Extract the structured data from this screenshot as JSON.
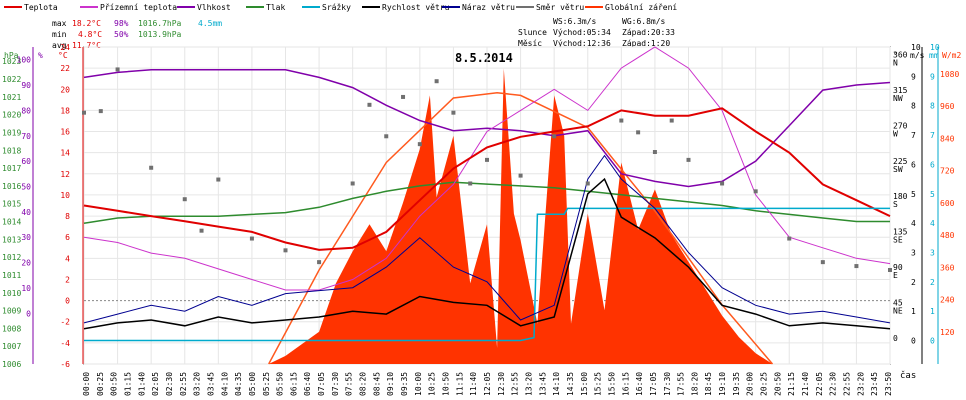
{
  "chart_data": {
    "type": "line",
    "title": "8.5.2014",
    "legend": [
      {
        "label": "Teplota",
        "color": "#e00000"
      },
      {
        "label": "Přízemní teplota",
        "color": "#cc33cc"
      },
      {
        "label": "Vlhkost",
        "color": "#8000aa"
      },
      {
        "label": "Tlak",
        "color": "#2e8b2e"
      },
      {
        "label": "Srážky",
        "color": "#00aacc"
      },
      {
        "label": "Rychlost větru",
        "color": "#000000"
      },
      {
        "label": "Náraz větru",
        "color": "#000090"
      },
      {
        "label": "Směr větru",
        "color": "#707070"
      },
      {
        "label": "Globální záření",
        "color": "#ff3300"
      }
    ],
    "stats": {
      "max_label": "max",
      "max_temp": "18.2°C",
      "max_hum": "98%",
      "max_press": "1016.7hPa",
      "max_rain": "4.5mm",
      "min_label": "min",
      "min_temp": "4.8°C",
      "min_hum": "50%",
      "min_press": "1013.9hPa",
      "avg_label": "avg",
      "avg_temp": "11.7°C"
    },
    "sun_info": {
      "ws": "WS:6.3m/s",
      "wg": "WG:6.8m/s",
      "sun_label": "Slunce",
      "sun_rise": "Východ:05:34",
      "sun_set": "Západ:20:33",
      "moon_label": "Měsíc",
      "moon_rise": "Východ:12:36",
      "moon_set": "Západ:1:20"
    },
    "axis_headers": {
      "hpa": "hPa",
      "percent": "%",
      "celsius": "°C",
      "degree": "°",
      "ms": "m/s",
      "mm": "mm",
      "wm2": "W/m2"
    },
    "pressure_ticks": [
      "1023",
      "1022",
      "1021",
      "1020",
      "1019",
      "1018",
      "1017",
      "1016",
      "1015",
      "1014",
      "1013",
      "1012",
      "1011",
      "1010",
      "1009",
      "1008",
      "1007",
      "1006"
    ],
    "humidity_ticks": [
      "100",
      "90",
      "80",
      "70",
      "60",
      "50",
      "40",
      "30",
      "20",
      "10",
      "0"
    ],
    "temp_ticks": [
      "24",
      "22",
      "20",
      "18",
      "16",
      "14",
      "12",
      "10",
      "8",
      "6",
      "4",
      "2",
      "0",
      "-2",
      "-4",
      "-6"
    ],
    "direction_ticks": [
      {
        "deg": "360",
        "dir": "N"
      },
      {
        "deg": "315",
        "dir": "NW"
      },
      {
        "deg": "270",
        "dir": "W"
      },
      {
        "deg": "225",
        "dir": "SW"
      },
      {
        "deg": "180",
        "dir": "S"
      },
      {
        "deg": "135",
        "dir": "SE"
      },
      {
        "deg": "90",
        "dir": "E"
      },
      {
        "deg": "45",
        "dir": "NE"
      },
      {
        "deg": "0",
        "dir": ""
      }
    ],
    "wind_ticks": [
      "10",
      "9",
      "8",
      "7",
      "6",
      "5",
      "4",
      "3",
      "2",
      "1",
      "0"
    ],
    "rain_ticks": [
      "10",
      "9",
      "8",
      "7",
      "6",
      "5",
      "4",
      "3",
      "2",
      "1",
      "0"
    ],
    "radiation_ticks": [
      "1080",
      "960",
      "840",
      "720",
      "600",
      "480",
      "360",
      "240",
      "120"
    ],
    "x_labels": [
      "00:00",
      "00:25",
      "00:50",
      "01:15",
      "01:40",
      "02:05",
      "02:30",
      "02:55",
      "03:20",
      "03:45",
      "04:10",
      "04:35",
      "05:00",
      "05:25",
      "05:50",
      "06:15",
      "06:40",
      "07:05",
      "07:30",
      "07:55",
      "08:20",
      "08:45",
      "09:10",
      "09:35",
      "10:00",
      "10:25",
      "10:50",
      "11:15",
      "11:40",
      "12:05",
      "12:30",
      "12:55",
      "13:20",
      "13:45",
      "14:10",
      "14:35",
      "15:00",
      "15:25",
      "15:50",
      "16:15",
      "16:40",
      "17:05",
      "17:30",
      "17:55",
      "18:20",
      "18:45",
      "19:10",
      "19:35",
      "20:00",
      "20:25",
      "20:50",
      "21:15",
      "21:40",
      "22:05",
      "22:30",
      "22:55",
      "23:20",
      "23:45",
      "23:50"
    ],
    "xlabel": "čas",
    "temperature": {
      "x": [
        0,
        1,
        2,
        3,
        4,
        5,
        6,
        7,
        8,
        9,
        10,
        11,
        12,
        13,
        14,
        15,
        16,
        17,
        18,
        19,
        20,
        21,
        22,
        23,
        24
      ],
      "y": [
        9,
        8.5,
        8,
        7.5,
        7,
        6.5,
        5.5,
        4.8,
        5,
        6.5,
        9.5,
        12.5,
        14.5,
        15.5,
        16,
        16.5,
        18,
        17.5,
        17.5,
        18.2,
        16,
        14,
        11,
        9.5,
        8
      ]
    },
    "ground_temperature": {
      "x": [
        0,
        1,
        2,
        3,
        4,
        5,
        6,
        7,
        8,
        9,
        10,
        11,
        12,
        13,
        14,
        15,
        16,
        17,
        18,
        19,
        20,
        21,
        22,
        23,
        24
      ],
      "y": [
        6,
        5.5,
        4.5,
        4,
        3,
        2,
        1,
        1,
        2,
        4,
        8,
        11,
        16,
        18,
        20,
        18,
        22,
        24,
        22,
        18,
        10,
        6,
        5,
        4,
        3.5
      ]
    },
    "humidity": {
      "x": [
        0,
        1,
        2,
        3,
        4,
        5,
        6,
        7,
        8,
        9,
        10,
        11,
        12,
        13,
        14,
        15,
        16,
        17,
        18,
        19,
        20,
        21,
        22,
        23,
        24
      ],
      "y": [
        93,
        95,
        96,
        96,
        96,
        96,
        96,
        93,
        89,
        82,
        76,
        72,
        73,
        72,
        70,
        72,
        55,
        52,
        50,
        52,
        60,
        74,
        88,
        90,
        91
      ]
    },
    "pressure": {
      "x": [
        0,
        1,
        2,
        3,
        4,
        5,
        6,
        7,
        8,
        9,
        10,
        11,
        12,
        13,
        14,
        15,
        16,
        17,
        18,
        19,
        20,
        21,
        22,
        23,
        24
      ],
      "y": [
        1013.9,
        1014.2,
        1014.3,
        1014.3,
        1014.3,
        1014.4,
        1014.5,
        1014.8,
        1015.3,
        1015.7,
        1016.0,
        1016.2,
        1016.1,
        1016.0,
        1015.9,
        1015.7,
        1015.5,
        1015.3,
        1015.1,
        1014.9,
        1014.6,
        1014.4,
        1014.2,
        1014.0,
        1014.0
      ]
    },
    "rain": {
      "x": [
        0,
        1,
        2,
        3,
        4,
        5,
        6,
        7,
        8,
        9,
        10,
        11,
        12,
        13,
        13.4,
        13.5,
        14,
        14.3,
        14.4,
        15,
        16,
        17,
        18,
        19,
        20,
        21,
        22,
        23,
        24
      ],
      "y": [
        0,
        0,
        0,
        0,
        0,
        0,
        0,
        0,
        0,
        0,
        0,
        0,
        0,
        0,
        0.1,
        4.3,
        4.3,
        4.3,
        4.5,
        4.5,
        4.5,
        4.5,
        4.5,
        4.5,
        4.5,
        4.5,
        4.5,
        4.5,
        4.5
      ]
    },
    "wind_speed": {
      "x": [
        0,
        1,
        2,
        3,
        4,
        5,
        6,
        7,
        8,
        9,
        10,
        11,
        12,
        13,
        14,
        15,
        15.5,
        16,
        17,
        18,
        19,
        20,
        21,
        22,
        23,
        24
      ],
      "y": [
        0.4,
        0.6,
        0.7,
        0.5,
        0.8,
        0.6,
        0.7,
        0.8,
        1.0,
        0.9,
        1.5,
        1.3,
        1.2,
        0.5,
        0.8,
        5,
        5.5,
        4.2,
        3.5,
        2.5,
        1.2,
        0.9,
        0.5,
        0.6,
        0.5,
        0.4
      ]
    },
    "wind_gust": {
      "x": [
        0,
        1,
        2,
        3,
        4,
        5,
        6,
        7,
        8,
        9,
        10,
        11,
        12,
        13,
        14,
        15,
        15.5,
        16,
        17,
        18,
        19,
        20,
        21,
        22,
        23,
        24
      ],
      "y": [
        0.6,
        0.9,
        1.2,
        1.0,
        1.5,
        1.2,
        1.6,
        1.7,
        1.8,
        2.5,
        3.5,
        2.5,
        2.0,
        0.7,
        1.2,
        5.5,
        6.3,
        5.5,
        4.5,
        3.0,
        1.8,
        1.2,
        0.9,
        1.0,
        0.8,
        0.6
      ]
    },
    "wind_direction": {
      "x": [
        0,
        0.5,
        1,
        2,
        3,
        3.5,
        4,
        5,
        6,
        7,
        8,
        8.5,
        9,
        9.5,
        10,
        10.5,
        11,
        11.5,
        12,
        13,
        14,
        15,
        16,
        16.5,
        17,
        17.5,
        18,
        19,
        20,
        21,
        22,
        23,
        24
      ],
      "y": [
        290,
        292,
        345,
        220,
        180,
        140,
        205,
        130,
        115,
        100,
        200,
        300,
        260,
        310,
        250,
        330,
        290,
        200,
        230,
        210,
        260,
        200,
        280,
        265,
        240,
        280,
        230,
        200,
        190,
        130,
        100,
        95,
        90
      ]
    },
    "solar_radiation": {
      "x": [
        0,
        5.5,
        6,
        7,
        7.5,
        8,
        8.5,
        9,
        9.5,
        10,
        10.3,
        10.5,
        11,
        11.5,
        12,
        12.3,
        12.5,
        12.8,
        13,
        13.5,
        14,
        14.3,
        14.5,
        15,
        15.5,
        16,
        16.5,
        17,
        17.5,
        18,
        18.5,
        19,
        19.5,
        20,
        20.5,
        24
      ],
      "y": [
        0,
        0,
        30,
        120,
        300,
        420,
        520,
        420,
        600,
        800,
        1000,
        620,
        850,
        300,
        520,
        60,
        1100,
        560,
        460,
        150,
        1000,
        850,
        150,
        560,
        200,
        750,
        500,
        650,
        480,
        380,
        280,
        180,
        100,
        40,
        0,
        0
      ]
    },
    "theoretical_radiation": {
      "x": [
        5.5,
        7,
        9,
        11,
        12.3,
        13,
        15,
        17,
        19,
        20.5
      ],
      "y": [
        0,
        350,
        750,
        990,
        1010,
        1000,
        880,
        570,
        220,
        0
      ]
    }
  }
}
